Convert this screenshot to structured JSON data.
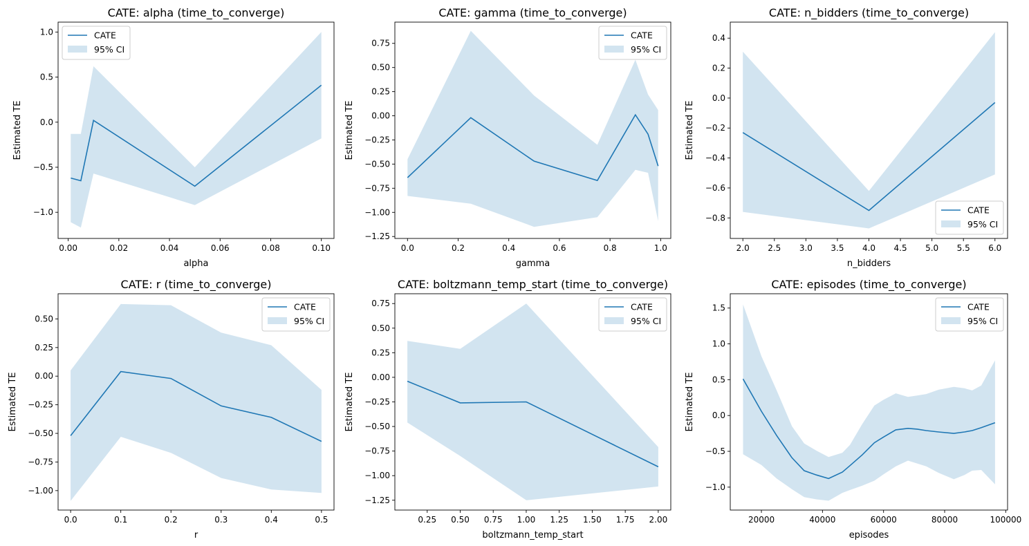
{
  "figure": {
    "background": "#ffffff"
  },
  "colors": {
    "line": "#1f77b4",
    "band": "#1f77b4",
    "band_opacity": 0.2
  },
  "chart_data": [
    {
      "type": "line",
      "title": "CATE: alpha (time_to_converge)",
      "xlabel": "alpha",
      "ylabel": "Estimated TE",
      "legend": {
        "position": "top-left",
        "entries": [
          "CATE",
          "95% CI"
        ]
      },
      "grid": false,
      "xlim": [
        -0.004,
        0.105
      ],
      "ylim": [
        -1.29,
        1.11
      ],
      "xticks": [
        0.0,
        0.02,
        0.04,
        0.06,
        0.08,
        0.1
      ],
      "xtick_labels": [
        "0.00",
        "0.02",
        "0.04",
        "0.06",
        "0.08",
        "0.10"
      ],
      "yticks": [
        -1.0,
        -0.5,
        0.0,
        0.5,
        1.0
      ],
      "ytick_labels": [
        "−1.0",
        "−0.5",
        "0.0",
        "0.5",
        "1.0"
      ],
      "x": [
        0.001,
        0.005,
        0.01,
        0.05,
        0.1
      ],
      "series": [
        {
          "name": "CATE",
          "values": [
            -0.62,
            -0.65,
            0.02,
            -0.71,
            0.41
          ]
        },
        {
          "name": "95% CI",
          "lower": [
            -1.11,
            -1.17,
            -0.57,
            -0.92,
            -0.18
          ],
          "upper": [
            -0.13,
            -0.13,
            0.62,
            -0.5,
            1.0
          ]
        }
      ]
    },
    {
      "type": "line",
      "title": "CATE: gamma (time_to_converge)",
      "xlabel": "gamma",
      "ylabel": "Estimated TE",
      "legend": {
        "position": "top-right",
        "entries": [
          "CATE",
          "95% CI"
        ]
      },
      "grid": false,
      "xlim": [
        -0.05,
        1.04
      ],
      "ylim": [
        -1.27,
        0.97
      ],
      "xticks": [
        0.0,
        0.2,
        0.4,
        0.6,
        0.8,
        1.0
      ],
      "xtick_labels": [
        "0.0",
        "0.2",
        "0.4",
        "0.6",
        "0.8",
        "1.0"
      ],
      "yticks": [
        -1.25,
        -1.0,
        -0.75,
        -0.5,
        -0.25,
        0.0,
        0.25,
        0.5,
        0.75
      ],
      "ytick_labels": [
        "−1.25",
        "−1.00",
        "−0.75",
        "−0.50",
        "−0.25",
        "0.00",
        "0.25",
        "0.50",
        "0.75"
      ],
      "x": [
        0.0,
        0.25,
        0.5,
        0.75,
        0.9,
        0.95,
        0.99
      ],
      "series": [
        {
          "name": "CATE",
          "values": [
            -0.64,
            -0.02,
            -0.47,
            -0.67,
            0.01,
            -0.19,
            -0.52
          ]
        },
        {
          "name": "95% CI",
          "lower": [
            -0.83,
            -0.91,
            -1.15,
            -1.05,
            -0.56,
            -0.59,
            -1.09
          ],
          "upper": [
            -0.45,
            0.88,
            0.21,
            -0.3,
            0.58,
            0.22,
            0.06
          ]
        }
      ]
    },
    {
      "type": "line",
      "title": "CATE: n_bidders (time_to_converge)",
      "xlabel": "n_bidders",
      "ylabel": "Estimated TE",
      "legend": {
        "position": "bottom-right",
        "entries": [
          "CATE",
          "95% CI"
        ]
      },
      "grid": false,
      "xlim": [
        1.8,
        6.2
      ],
      "ylim": [
        -0.937,
        0.507
      ],
      "xticks": [
        2.0,
        2.5,
        3.0,
        3.5,
        4.0,
        4.5,
        5.0,
        5.5,
        6.0
      ],
      "xtick_labels": [
        "2.0",
        "2.5",
        "3.0",
        "3.5",
        "4.0",
        "4.5",
        "5.0",
        "5.5",
        "6.0"
      ],
      "yticks": [
        -0.8,
        -0.6,
        -0.4,
        -0.2,
        0.0,
        0.2,
        0.4
      ],
      "ytick_labels": [
        "−0.8",
        "−0.6",
        "−0.4",
        "−0.2",
        "0.0",
        "0.2",
        "0.4"
      ],
      "x": [
        2,
        4,
        6
      ],
      "series": [
        {
          "name": "CATE",
          "values": [
            -0.23,
            -0.75,
            -0.03
          ]
        },
        {
          "name": "95% CI",
          "lower": [
            -0.76,
            -0.87,
            -0.51
          ],
          "upper": [
            0.31,
            -0.62,
            0.44
          ]
        }
      ]
    },
    {
      "type": "line",
      "title": "CATE: r (time_to_converge)",
      "xlabel": "r",
      "ylabel": "Estimated TE",
      "legend": {
        "position": "top-right",
        "entries": [
          "CATE",
          "95% CI"
        ]
      },
      "grid": false,
      "xlim": [
        -0.025,
        0.525
      ],
      "ylim": [
        -1.17,
        0.72
      ],
      "xticks": [
        0.0,
        0.1,
        0.2,
        0.3,
        0.4,
        0.5
      ],
      "xtick_labels": [
        "0.0",
        "0.1",
        "0.2",
        "0.3",
        "0.4",
        "0.5"
      ],
      "yticks": [
        -1.0,
        -0.75,
        -0.5,
        -0.25,
        0.0,
        0.25,
        0.5
      ],
      "ytick_labels": [
        "−1.00",
        "−0.75",
        "−0.50",
        "−0.25",
        "0.00",
        "0.25",
        "0.50"
      ],
      "x": [
        0.0,
        0.1,
        0.2,
        0.3,
        0.4,
        0.5
      ],
      "series": [
        {
          "name": "CATE",
          "values": [
            -0.52,
            0.04,
            -0.02,
            -0.26,
            -0.36,
            -0.57
          ]
        },
        {
          "name": "95% CI",
          "lower": [
            -1.09,
            -0.53,
            -0.67,
            -0.89,
            -0.99,
            -1.02
          ],
          "upper": [
            0.05,
            0.63,
            0.62,
            0.38,
            0.27,
            -0.12
          ]
        }
      ]
    },
    {
      "type": "line",
      "title": "CATE: boltzmann_temp_start (time_to_converge)",
      "xlabel": "boltzmann_temp_start",
      "ylabel": "Estimated TE",
      "legend": {
        "position": "top-right",
        "entries": [
          "CATE",
          "95% CI"
        ]
      },
      "grid": false,
      "xlim": [
        0.005,
        2.095
      ],
      "ylim": [
        -1.35,
        0.85
      ],
      "xticks": [
        0.25,
        0.5,
        0.75,
        1.0,
        1.25,
        1.5,
        1.75,
        2.0
      ],
      "xtick_labels": [
        "0.25",
        "0.50",
        "0.75",
        "1.00",
        "1.25",
        "1.50",
        "1.75",
        "2.00"
      ],
      "yticks": [
        -1.25,
        -1.0,
        -0.75,
        -0.5,
        -0.25,
        0.0,
        0.25,
        0.5,
        0.75
      ],
      "ytick_labels": [
        "−1.25",
        "−1.00",
        "−0.75",
        "−0.50",
        "−0.25",
        "0.00",
        "0.25",
        "0.50",
        "0.75"
      ],
      "x": [
        0.1,
        0.5,
        1.0,
        2.0
      ],
      "series": [
        {
          "name": "CATE",
          "values": [
            -0.04,
            -0.26,
            -0.25,
            -0.91
          ]
        },
        {
          "name": "95% CI",
          "lower": [
            -0.46,
            -0.8,
            -1.25,
            -1.11
          ],
          "upper": [
            0.37,
            0.29,
            0.75,
            -0.71
          ]
        }
      ]
    },
    {
      "type": "line",
      "title": "CATE: episodes (time_to_converge)",
      "xlabel": "episodes",
      "ylabel": "Estimated TE",
      "legend": {
        "position": "top-right",
        "entries": [
          "CATE",
          "95% CI"
        ]
      },
      "grid": false,
      "xlim": [
        9800,
        100600
      ],
      "ylim": [
        -1.32,
        1.7
      ],
      "xticks": [
        20000,
        40000,
        60000,
        80000,
        100000
      ],
      "xtick_labels": [
        "20000",
        "40000",
        "60000",
        "80000",
        "100000"
      ],
      "yticks": [
        -1.0,
        -0.5,
        0.0,
        0.5,
        1.0,
        1.5
      ],
      "ytick_labels": [
        "−1.0",
        "−0.5",
        "0.0",
        "0.5",
        "1.0",
        "1.5"
      ],
      "x": [
        14000,
        20000,
        25000,
        30000,
        34000,
        38000,
        42000,
        46500,
        49000,
        53000,
        57000,
        60000,
        64000,
        68000,
        71000,
        74000,
        78000,
        83000,
        86500,
        89000,
        92000,
        96500
      ],
      "series": [
        {
          "name": "CATE",
          "values": [
            0.51,
            0.06,
            -0.28,
            -0.59,
            -0.77,
            -0.83,
            -0.88,
            -0.79,
            -0.7,
            -0.55,
            -0.38,
            -0.3,
            -0.2,
            -0.18,
            -0.19,
            -0.21,
            -0.23,
            -0.25,
            -0.23,
            -0.21,
            -0.17,
            -0.1
          ]
        },
        {
          "name": "95% CI",
          "lower": [
            -0.54,
            -0.69,
            -0.88,
            -1.03,
            -1.14,
            -1.17,
            -1.19,
            -1.08,
            -1.04,
            -0.98,
            -0.91,
            -0.82,
            -0.71,
            -0.63,
            -0.67,
            -0.71,
            -0.8,
            -0.89,
            -0.83,
            -0.77,
            -0.76,
            -0.96
          ],
          "upper": [
            1.55,
            0.83,
            0.35,
            -0.15,
            -0.39,
            -0.49,
            -0.58,
            -0.52,
            -0.41,
            -0.12,
            0.14,
            0.22,
            0.31,
            0.26,
            0.28,
            0.3,
            0.36,
            0.4,
            0.38,
            0.35,
            0.42,
            0.77
          ]
        }
      ]
    }
  ]
}
